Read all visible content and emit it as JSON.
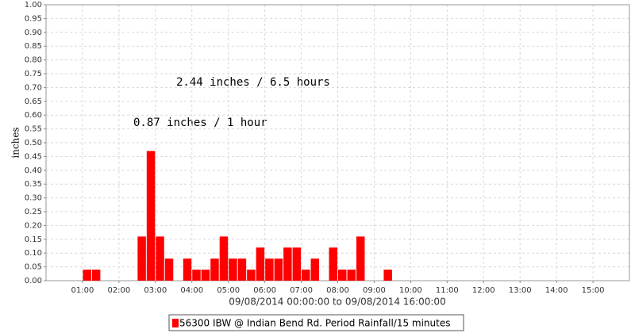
{
  "chart_data": {
    "type": "bar",
    "x": [
      1,
      1.25,
      2.5,
      2.75,
      3,
      3.25,
      3.75,
      4,
      4.25,
      4.5,
      4.75,
      5,
      5.25,
      5.5,
      5.75,
      6,
      6.25,
      6.5,
      6.75,
      7,
      7.25,
      7.75,
      8,
      8.25,
      8.5,
      9.25
    ],
    "series": [
      {
        "name": "56300 IBW @ Indian Bend Rd. Period Rainfall/15 minutes",
        "color": "#ff0000",
        "values": [
          0.04,
          0.04,
          0.16,
          0.47,
          0.16,
          0.08,
          0.08,
          0.04,
          0.04,
          0.08,
          0.16,
          0.08,
          0.08,
          0.04,
          0.12,
          0.08,
          0.08,
          0.12,
          0.12,
          0.04,
          0.08,
          0.12,
          0.04,
          0.04,
          0.16,
          0.04
        ]
      }
    ],
    "y_label": "inches",
    "x_label": "09/08/2014 00:00:00 to 09/08/2014 16:00:00",
    "annotations": [
      "2.44 inches / 6.5 hours",
      "0.87 inches / 1 hour"
    ],
    "xlim": [
      0,
      16
    ],
    "xticks": [
      {
        "value": 1,
        "label": "01:00"
      },
      {
        "value": 2,
        "label": "02:00"
      },
      {
        "value": 3,
        "label": "03:00"
      },
      {
        "value": 4,
        "label": "04:00"
      },
      {
        "value": 5,
        "label": "05:00"
      },
      {
        "value": 6,
        "label": "06:00"
      },
      {
        "value": 7,
        "label": "07:00"
      },
      {
        "value": 8,
        "label": "08:00"
      },
      {
        "value": 9,
        "label": "09:00"
      },
      {
        "value": 10,
        "label": "10:00"
      },
      {
        "value": 11,
        "label": "11:00"
      },
      {
        "value": 12,
        "label": "12:00"
      },
      {
        "value": 13,
        "label": "13:00"
      },
      {
        "value": 14,
        "label": "14:00"
      },
      {
        "value": 15,
        "label": "15:00"
      }
    ],
    "ylim": [
      0,
      1
    ],
    "yticks": [
      {
        "value": 0,
        "label": "0.00"
      },
      {
        "value": 0.05,
        "label": "0.05"
      },
      {
        "value": 0.1,
        "label": "0.10"
      },
      {
        "value": 0.15,
        "label": "0.15"
      },
      {
        "value": 0.2,
        "label": "0.20"
      },
      {
        "value": 0.25,
        "label": "0.25"
      },
      {
        "value": 0.3,
        "label": "0.30"
      },
      {
        "value": 0.35,
        "label": "0.35"
      },
      {
        "value": 0.4,
        "label": "0.40"
      },
      {
        "value": 0.45,
        "label": "0.45"
      },
      {
        "value": 0.5,
        "label": "0.50"
      },
      {
        "value": 0.55,
        "label": "0.55"
      },
      {
        "value": 0.6,
        "label": "0.60"
      },
      {
        "value": 0.65,
        "label": "0.65"
      },
      {
        "value": 0.7,
        "label": "0.70"
      },
      {
        "value": 0.75,
        "label": "0.75"
      },
      {
        "value": 0.8,
        "label": "0.80"
      },
      {
        "value": 0.85,
        "label": "0.85"
      },
      {
        "value": 0.9,
        "label": "0.90"
      },
      {
        "value": 0.95,
        "label": "0.95"
      },
      {
        "value": 1,
        "label": "1.00"
      }
    ],
    "grid": true
  }
}
